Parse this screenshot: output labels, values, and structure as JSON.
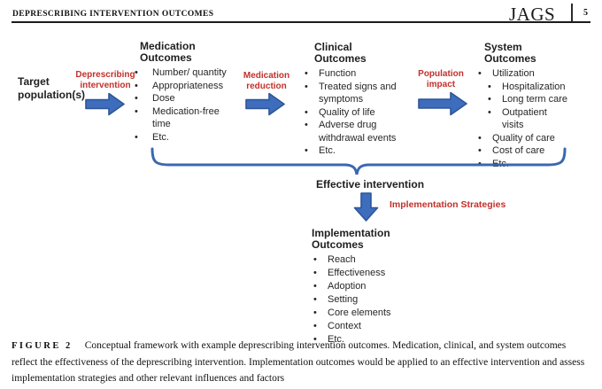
{
  "header": {
    "running_title": "DEPRESCRIBING INTERVENTION OUTCOMES",
    "journal": "JAGS",
    "page_number": "5"
  },
  "diagram": {
    "target_label": "Target\npopulation(s)",
    "arrow_labels": {
      "deprescribing": "Deprescribing\nintervention",
      "medication_reduction": "Medication\nreduction",
      "population_impact": "Population\nimpact",
      "implementation_strategies": "Implementation Strategies"
    },
    "effective_intervention": "Effective intervention",
    "columns": {
      "medication": {
        "title": "Medication Outcomes",
        "items": [
          "Number/ quantity",
          "Appropriateness",
          "Dose",
          "Medication-free\ntime",
          "Etc."
        ]
      },
      "clinical": {
        "title": "Clinical Outcomes",
        "items": [
          "Function",
          "Treated signs and\nsymptoms",
          "Quality of life",
          "Adverse drug\nwithdrawal events",
          "Etc."
        ]
      },
      "system": {
        "title": "System Outcomes",
        "items": [
          {
            "text": "Utilization",
            "level": 1
          },
          {
            "text": "Hospitalization",
            "level": 2
          },
          {
            "text": "Long term care",
            "level": 2
          },
          {
            "text": "Outpatient\nvisits",
            "level": 2
          },
          {
            "text": "Quality of care",
            "level": 1
          },
          {
            "text": "Cost of care",
            "level": 1
          },
          {
            "text": "Etc.",
            "level": 1
          }
        ]
      },
      "implementation": {
        "title": "Implementation Outcomes",
        "items": [
          "Reach",
          "Effectiveness",
          "Adoption",
          "Setting",
          "Core elements",
          "Context",
          "Etc."
        ]
      }
    },
    "colors": {
      "arrow_fill": "#3e6dbd",
      "arrow_stroke": "#2e5597",
      "brace": "#3a68b0",
      "red_label": "#c2302a"
    }
  },
  "caption": {
    "label": "FIGURE 2",
    "text": "Conceptual framework with example deprescribing intervention outcomes. Medication, clinical, and system outcomes reflect the effectiveness of the deprescribing intervention. Implementation outcomes would be applied to an effective intervention and assess implementation strategies and other relevant influences and factors"
  }
}
